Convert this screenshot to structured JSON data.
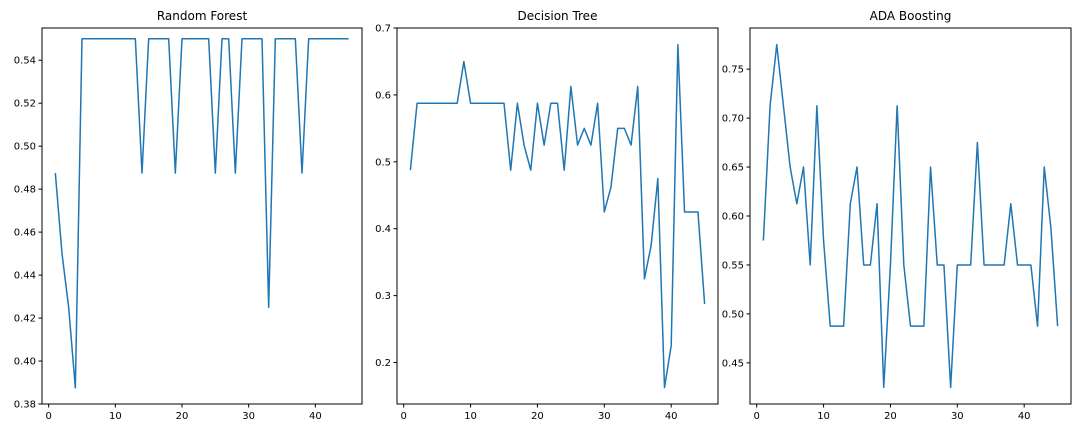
{
  "chart_data": [
    {
      "type": "line",
      "title": "Random Forest",
      "xlabel": "",
      "ylabel": "",
      "xlim": [
        -1,
        47
      ],
      "ylim": [
        0.38,
        0.555
      ],
      "xticks": [
        0,
        10,
        20,
        30,
        40
      ],
      "xtick_labels": [
        "0",
        "10",
        "20",
        "30",
        "40"
      ],
      "yticks": [
        0.38,
        0.4,
        0.42,
        0.44,
        0.46,
        0.48,
        0.5,
        0.52,
        0.54
      ],
      "ytick_labels": [
        "0.38",
        "0.40",
        "0.42",
        "0.44",
        "0.46",
        "0.48",
        "0.50",
        "0.52",
        "0.54"
      ],
      "grid": false,
      "color": "#1f77b4",
      "x": [
        1,
        2,
        3,
        4,
        5,
        6,
        7,
        8,
        9,
        10,
        11,
        12,
        13,
        14,
        15,
        16,
        17,
        18,
        19,
        20,
        21,
        22,
        23,
        24,
        25,
        26,
        27,
        28,
        29,
        30,
        31,
        32,
        33,
        34,
        35,
        36,
        37,
        38,
        39,
        40,
        41,
        42,
        43,
        44,
        45
      ],
      "y": [
        0.4875,
        0.45,
        0.425,
        0.3875,
        0.55,
        0.55,
        0.55,
        0.55,
        0.55,
        0.55,
        0.55,
        0.55,
        0.55,
        0.4875,
        0.55,
        0.55,
        0.55,
        0.55,
        0.4875,
        0.55,
        0.55,
        0.55,
        0.55,
        0.55,
        0.4875,
        0.55,
        0.55,
        0.4875,
        0.55,
        0.55,
        0.55,
        0.55,
        0.425,
        0.55,
        0.55,
        0.55,
        0.55,
        0.4875,
        0.55,
        0.55,
        0.55,
        0.55,
        0.55,
        0.55,
        0.55
      ]
    },
    {
      "type": "line",
      "title": "Decision Tree",
      "xlabel": "",
      "ylabel": "",
      "xlim": [
        -1,
        47
      ],
      "ylim": [
        0.138,
        0.7
      ],
      "xticks": [
        0,
        10,
        20,
        30,
        40
      ],
      "xtick_labels": [
        "0",
        "10",
        "20",
        "30",
        "40"
      ],
      "yticks": [
        0.2,
        0.3,
        0.4,
        0.5,
        0.6,
        0.7
      ],
      "ytick_labels": [
        "0.2",
        "0.3",
        "0.4",
        "0.5",
        "0.6",
        "0.7"
      ],
      "grid": false,
      "color": "#1f77b4",
      "x": [
        1,
        2,
        3,
        4,
        5,
        6,
        7,
        8,
        9,
        10,
        11,
        12,
        13,
        14,
        15,
        16,
        17,
        18,
        19,
        20,
        21,
        22,
        23,
        24,
        25,
        26,
        27,
        28,
        29,
        30,
        31,
        32,
        33,
        34,
        35,
        36,
        37,
        38,
        39,
        40,
        41,
        42,
        43,
        44,
        45
      ],
      "y": [
        0.4875,
        0.5875,
        0.5875,
        0.5875,
        0.5875,
        0.5875,
        0.5875,
        0.5875,
        0.65,
        0.5875,
        0.5875,
        0.5875,
        0.5875,
        0.5875,
        0.5875,
        0.4875,
        0.5875,
        0.525,
        0.4875,
        0.5875,
        0.525,
        0.5875,
        0.5875,
        0.4875,
        0.6125,
        0.525,
        0.55,
        0.525,
        0.5875,
        0.425,
        0.4625,
        0.55,
        0.55,
        0.525,
        0.6125,
        0.325,
        0.375,
        0.475,
        0.1625,
        0.225,
        0.675,
        0.425,
        0.425,
        0.425,
        0.2875
      ]
    },
    {
      "type": "line",
      "title": "ADA Boosting",
      "xlabel": "",
      "ylabel": "",
      "xlim": [
        -1,
        47
      ],
      "ylim": [
        0.408,
        0.792
      ],
      "xticks": [
        0,
        10,
        20,
        30,
        40
      ],
      "xtick_labels": [
        "0",
        "10",
        "20",
        "30",
        "40"
      ],
      "yticks": [
        0.45,
        0.5,
        0.55,
        0.6,
        0.65,
        0.7,
        0.75
      ],
      "ytick_labels": [
        "0.45",
        "0.50",
        "0.55",
        "0.60",
        "0.65",
        "0.70",
        "0.75"
      ],
      "grid": false,
      "color": "#1f77b4",
      "x": [
        1,
        2,
        3,
        4,
        5,
        6,
        7,
        8,
        9,
        10,
        11,
        12,
        13,
        14,
        15,
        16,
        17,
        18,
        19,
        20,
        21,
        22,
        23,
        24,
        25,
        26,
        27,
        28,
        29,
        30,
        31,
        32,
        33,
        34,
        35,
        36,
        37,
        38,
        39,
        40,
        41,
        42,
        43,
        44,
        45
      ],
      "y": [
        0.575,
        0.7125,
        0.775,
        0.7125,
        0.65,
        0.6125,
        0.65,
        0.55,
        0.7125,
        0.575,
        0.4875,
        0.4875,
        0.4875,
        0.6125,
        0.65,
        0.55,
        0.55,
        0.6125,
        0.425,
        0.55,
        0.7125,
        0.55,
        0.4875,
        0.4875,
        0.4875,
        0.65,
        0.55,
        0.55,
        0.425,
        0.55,
        0.55,
        0.55,
        0.675,
        0.55,
        0.55,
        0.55,
        0.55,
        0.6125,
        0.55,
        0.55,
        0.55,
        0.4875,
        0.65,
        0.5875,
        0.4875
      ]
    }
  ]
}
